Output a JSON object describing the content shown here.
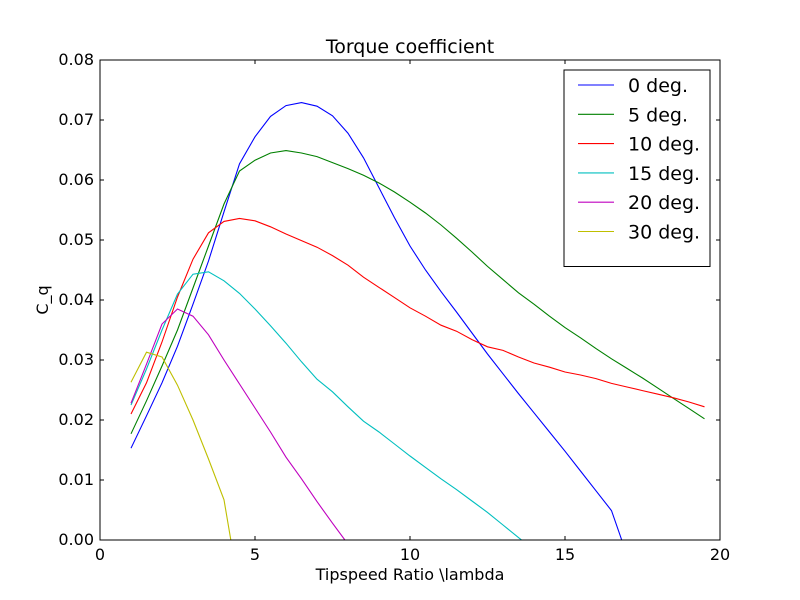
{
  "chart_data": {
    "type": "line",
    "title": "Torque coefficient",
    "xlabel": "Tipspeed Ratio \\lambda",
    "ylabel": "C_q",
    "xlim": [
      0,
      20
    ],
    "ylim": [
      0,
      0.08
    ],
    "xticks": [
      0,
      5,
      10,
      15,
      20
    ],
    "xtick_labels": [
      "0",
      "5",
      "10",
      "15",
      "20"
    ],
    "yticks": [
      0,
      0.01,
      0.02,
      0.03,
      0.04,
      0.05,
      0.06,
      0.07,
      0.08
    ],
    "ytick_labels": [
      "0.00",
      "0.01",
      "0.02",
      "0.03",
      "0.04",
      "0.05",
      "0.06",
      "0.07",
      "0.08"
    ],
    "grid": false,
    "legend_position": "top-right",
    "series": [
      {
        "name": "0 deg.",
        "color": "#0000ff",
        "points": [
          [
            1.0,
            0.0153
          ],
          [
            1.5,
            0.0207
          ],
          [
            2.0,
            0.0262
          ],
          [
            2.5,
            0.0323
          ],
          [
            3.0,
            0.0393
          ],
          [
            3.5,
            0.0465
          ],
          [
            4.0,
            0.0547
          ],
          [
            4.5,
            0.0627
          ],
          [
            5.0,
            0.0672
          ],
          [
            5.5,
            0.0706
          ],
          [
            6.0,
            0.0724
          ],
          [
            6.5,
            0.0729
          ],
          [
            7.0,
            0.0723
          ],
          [
            7.5,
            0.0707
          ],
          [
            8.0,
            0.0678
          ],
          [
            8.5,
            0.0637
          ],
          [
            9.0,
            0.0587
          ],
          [
            9.5,
            0.0537
          ],
          [
            10.0,
            0.049
          ],
          [
            10.5,
            0.045
          ],
          [
            11.0,
            0.0414
          ],
          [
            11.5,
            0.038
          ],
          [
            12.0,
            0.0345
          ],
          [
            12.5,
            0.031
          ],
          [
            13.0,
            0.0277
          ],
          [
            13.5,
            0.0244
          ],
          [
            14.0,
            0.0212
          ],
          [
            14.5,
            0.018
          ],
          [
            15.0,
            0.0148
          ],
          [
            15.5,
            0.0115
          ],
          [
            16.0,
            0.0082
          ],
          [
            16.5,
            0.0049
          ],
          [
            16.83,
            0.0
          ]
        ]
      },
      {
        "name": "5 deg.",
        "color": "#008000",
        "points": [
          [
            1.0,
            0.0177
          ],
          [
            1.5,
            0.0232
          ],
          [
            2.0,
            0.029
          ],
          [
            2.5,
            0.035
          ],
          [
            3.0,
            0.042
          ],
          [
            3.5,
            0.049
          ],
          [
            4.0,
            0.056
          ],
          [
            4.5,
            0.0615
          ],
          [
            5.0,
            0.0633
          ],
          [
            5.5,
            0.0645
          ],
          [
            6.0,
            0.0649
          ],
          [
            6.5,
            0.0645
          ],
          [
            7.0,
            0.0639
          ],
          [
            7.5,
            0.0629
          ],
          [
            8.0,
            0.0619
          ],
          [
            8.5,
            0.0608
          ],
          [
            9.0,
            0.0595
          ],
          [
            9.5,
            0.058
          ],
          [
            10.0,
            0.0563
          ],
          [
            10.5,
            0.0545
          ],
          [
            11.0,
            0.0525
          ],
          [
            11.5,
            0.0503
          ],
          [
            12.0,
            0.048
          ],
          [
            12.5,
            0.0456
          ],
          [
            13.0,
            0.0434
          ],
          [
            13.5,
            0.0412
          ],
          [
            14.0,
            0.0393
          ],
          [
            14.5,
            0.0373
          ],
          [
            15.0,
            0.0354
          ],
          [
            15.5,
            0.0337
          ],
          [
            16.0,
            0.0319
          ],
          [
            16.5,
            0.0302
          ],
          [
            17.0,
            0.0286
          ],
          [
            17.5,
            0.027
          ],
          [
            18.0,
            0.0253
          ],
          [
            18.5,
            0.0236
          ],
          [
            19.0,
            0.0219
          ],
          [
            19.5,
            0.0202
          ]
        ]
      },
      {
        "name": "10 deg.",
        "color": "#ff0000",
        "points": [
          [
            1.0,
            0.021
          ],
          [
            1.5,
            0.0262
          ],
          [
            2.0,
            0.033
          ],
          [
            2.5,
            0.0405
          ],
          [
            3.0,
            0.0468
          ],
          [
            3.5,
            0.0512
          ],
          [
            4.0,
            0.0531
          ],
          [
            4.5,
            0.0536
          ],
          [
            5.0,
            0.0532
          ],
          [
            5.5,
            0.0522
          ],
          [
            6.0,
            0.051
          ],
          [
            6.5,
            0.0499
          ],
          [
            7.0,
            0.0488
          ],
          [
            7.5,
            0.0474
          ],
          [
            8.0,
            0.0458
          ],
          [
            8.5,
            0.0438
          ],
          [
            9.0,
            0.0421
          ],
          [
            9.5,
            0.0404
          ],
          [
            10.0,
            0.0387
          ],
          [
            10.5,
            0.0373
          ],
          [
            11.0,
            0.0358
          ],
          [
            11.5,
            0.0348
          ],
          [
            12.0,
            0.0334
          ],
          [
            12.5,
            0.0322
          ],
          [
            13.0,
            0.0316
          ],
          [
            13.5,
            0.0305
          ],
          [
            14.0,
            0.0295
          ],
          [
            14.5,
            0.0288
          ],
          [
            15.0,
            0.028
          ],
          [
            15.5,
            0.0275
          ],
          [
            16.0,
            0.0269
          ],
          [
            16.5,
            0.0261
          ],
          [
            17.0,
            0.0255
          ],
          [
            17.5,
            0.0249
          ],
          [
            18.0,
            0.0243
          ],
          [
            18.5,
            0.0237
          ],
          [
            19.0,
            0.023
          ],
          [
            19.5,
            0.0222
          ]
        ]
      },
      {
        "name": "15 deg.",
        "color": "#00bfbf",
        "points": [
          [
            1.0,
            0.0225
          ],
          [
            1.5,
            0.0285
          ],
          [
            2.0,
            0.035
          ],
          [
            2.5,
            0.041
          ],
          [
            3.0,
            0.0443
          ],
          [
            3.5,
            0.0447
          ],
          [
            4.0,
            0.0432
          ],
          [
            4.5,
            0.0411
          ],
          [
            5.0,
            0.0385
          ],
          [
            5.5,
            0.0357
          ],
          [
            6.0,
            0.0328
          ],
          [
            6.5,
            0.0297
          ],
          [
            7.0,
            0.0268
          ],
          [
            7.5,
            0.0247
          ],
          [
            8.0,
            0.0222
          ],
          [
            8.5,
            0.0198
          ],
          [
            9.0,
            0.018
          ],
          [
            9.5,
            0.016
          ],
          [
            10.0,
            0.014
          ],
          [
            10.5,
            0.0121
          ],
          [
            11.0,
            0.0102
          ],
          [
            11.5,
            0.0084
          ],
          [
            12.0,
            0.0065
          ],
          [
            12.5,
            0.0046
          ],
          [
            13.0,
            0.0025
          ],
          [
            13.5,
            0.0004
          ],
          [
            13.6,
            0.0
          ]
        ]
      },
      {
        "name": "20 deg.",
        "color": "#bf00bf",
        "points": [
          [
            1.0,
            0.0228
          ],
          [
            1.5,
            0.0293
          ],
          [
            2.0,
            0.036
          ],
          [
            2.5,
            0.0385
          ],
          [
            3.0,
            0.0373
          ],
          [
            3.5,
            0.0342
          ],
          [
            4.0,
            0.03
          ],
          [
            4.5,
            0.026
          ],
          [
            5.0,
            0.022
          ],
          [
            5.5,
            0.018
          ],
          [
            6.0,
            0.0138
          ],
          [
            6.5,
            0.0102
          ],
          [
            7.0,
            0.0064
          ],
          [
            7.5,
            0.0028
          ],
          [
            7.9,
            0.0
          ]
        ]
      },
      {
        "name": "30 deg.",
        "color": "#bfbf00",
        "points": [
          [
            1.0,
            0.0263
          ],
          [
            1.5,
            0.0313
          ],
          [
            2.0,
            0.0305
          ],
          [
            2.5,
            0.0258
          ],
          [
            3.0,
            0.02
          ],
          [
            3.5,
            0.0135
          ],
          [
            4.0,
            0.0067
          ],
          [
            4.22,
            0.0
          ]
        ]
      }
    ]
  }
}
